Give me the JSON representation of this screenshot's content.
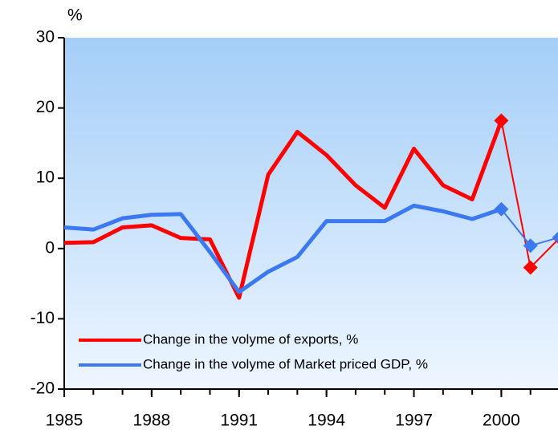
{
  "chart_data": {
    "type": "line",
    "y_axis_label": "%",
    "x": [
      1985,
      1986,
      1987,
      1988,
      1989,
      1990,
      1991,
      1992,
      1993,
      1994,
      1995,
      1996,
      1997,
      1998,
      1999,
      2000,
      2001,
      2002
    ],
    "series": [
      {
        "name": "Change in the volyme of exports, %",
        "color": "#ff0000",
        "values": [
          0.8,
          0.9,
          3.0,
          3.3,
          1.5,
          1.3,
          -7.0,
          10.5,
          16.6,
          13.3,
          9.0,
          5.8,
          14.2,
          9.0,
          7.0,
          18.2,
          -2.7,
          1.5
        ]
      },
      {
        "name": "Change in the volyme of Market priced GDP, %",
        "color": "#3c78f0",
        "values": [
          3.0,
          2.7,
          4.3,
          4.8,
          4.9,
          -0.5,
          -6.2,
          -3.3,
          -1.2,
          3.9,
          3.9,
          3.9,
          6.1,
          5.3,
          4.2,
          5.6,
          0.4,
          1.6
        ]
      }
    ],
    "xlim": [
      1985,
      2002
    ],
    "xticks": [
      1985,
      1988,
      1991,
      1994,
      1997,
      2000
    ],
    "ylim": [
      -20,
      30
    ],
    "yticks": [
      -20,
      -10,
      0,
      10,
      20,
      30
    ],
    "legend": "lower left"
  }
}
